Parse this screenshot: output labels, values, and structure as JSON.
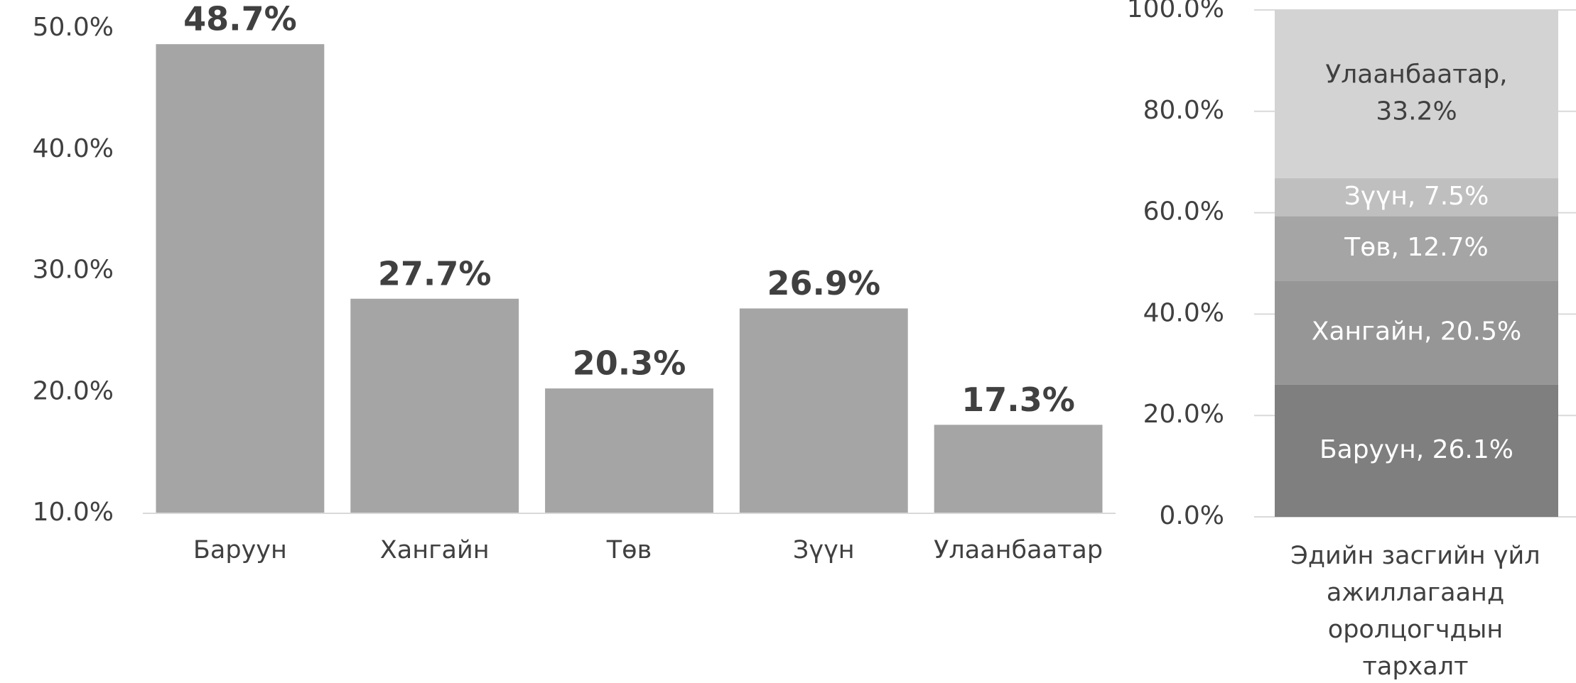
{
  "chart_data": [
    {
      "type": "bar",
      "categories": [
        "Баруун",
        "Хангайн",
        "Төв",
        "Зүүн",
        "Улаанбаатар"
      ],
      "values": [
        48.7,
        27.7,
        20.3,
        26.9,
        17.3
      ],
      "value_labels": [
        "48.7%",
        "27.7%",
        "20.3%",
        "26.9%",
        "17.3%"
      ],
      "color": "#a5a5a5",
      "ylim": [
        10,
        50
      ],
      "yticks": [
        {
          "value": 10,
          "label": "10.0%"
        },
        {
          "value": 20,
          "label": "20.0%"
        },
        {
          "value": 30,
          "label": "30.0%"
        },
        {
          "value": 40,
          "label": "40.0%"
        },
        {
          "value": 50,
          "label": "50.0%"
        }
      ],
      "grid": false
    },
    {
      "type": "stacked_bar",
      "categories": [
        "Эдийн засгийн үйл ажиллагаанд оролцогчдын тархалт"
      ],
      "series": [
        {
          "name": "Баруун",
          "color": "#7f7f7f",
          "values": [
            26.1
          ],
          "value_labels": [
            "Баруун, 26.1%"
          ]
        },
        {
          "name": "Хангайн",
          "color": "#969696",
          "values": [
            20.5
          ],
          "value_labels": [
            "Хангайн, 20.5%"
          ]
        },
        {
          "name": "Төв",
          "color": "#a5a5a5",
          "values": [
            12.7
          ],
          "value_labels": [
            "Төв, 12.7%"
          ]
        },
        {
          "name": "Зүүн",
          "color": "#bfbfbf",
          "values": [
            7.5
          ],
          "value_labels": [
            "Зүүн, 7.5%"
          ]
        },
        {
          "name": "Улаанбаатар",
          "color": "#d3d3d3",
          "values": [
            33.2
          ],
          "value_labels": [
            "Улаанбаатар, 33.2%"
          ]
        }
      ],
      "ylim": [
        0,
        100
      ],
      "yticks": [
        {
          "value": 0,
          "label": "0.0%"
        },
        {
          "value": 20,
          "label": "20.0%"
        },
        {
          "value": 40,
          "label": "40.0%"
        },
        {
          "value": 60,
          "label": "60.0%"
        },
        {
          "value": 80,
          "label": "80.0%"
        },
        {
          "value": 100,
          "label": "100.0%"
        }
      ],
      "grid": true
    }
  ]
}
